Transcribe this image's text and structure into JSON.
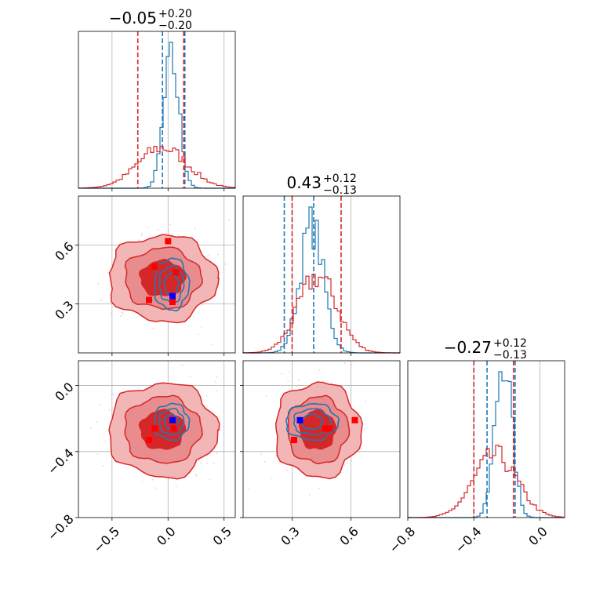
{
  "colors": {
    "blue": "#1f77b4",
    "red": "#d62728",
    "red_fill_light": "#f2b6b7",
    "red_fill_mid": "#e88c8d",
    "red_fill_dark": "#d62728",
    "grid": "#b0b0b0"
  },
  "chart_data": {
    "type": "corner",
    "params": 3,
    "titles": [
      {
        "main": "−0.05",
        "plus": "+0.20",
        "minus": "−0.20"
      },
      {
        "main": "0.43",
        "plus": "+0.12",
        "minus": "−0.13"
      },
      {
        "main": "−0.27",
        "plus": "+0.12",
        "minus": "−0.13"
      }
    ],
    "ranges": [
      [
        -0.8,
        0.6
      ],
      [
        0.05,
        0.85
      ],
      [
        -0.8,
        0.15
      ]
    ],
    "ticks": [
      {
        "values": [
          -0.5,
          0.0,
          0.5
        ],
        "labels": [
          "−0.5",
          "0.0",
          "0.5"
        ]
      },
      {
        "values": [
          0.3,
          0.6
        ],
        "labels": [
          "0.3",
          "0.6"
        ]
      },
      {
        "values": [
          -0.8,
          -0.4,
          0.0
        ],
        "labels": [
          "−0.8",
          "−0.4",
          "0.0"
        ]
      }
    ],
    "row_ticks": [
      {
        "values": [
          0.3,
          0.6
        ],
        "labels": [
          "0.3",
          "0.6"
        ]
      },
      {
        "values": [
          -0.8,
          -0.4,
          0.0
        ],
        "labels": [
          "−0.8",
          "−0.4",
          "0.0"
        ]
      }
    ],
    "grid": true,
    "series": [
      {
        "color": "blue",
        "means": [
          0.03,
          0.4,
          -0.22
        ],
        "sigmas": [
          0.07,
          0.06,
          0.05
        ],
        "quantiles": [
          [
            -0.05,
            0.15
          ],
          [
            0.26,
            0.41
          ],
          [
            -0.32,
            -0.15
          ]
        ],
        "contour_radii": [
          [
            0.09,
            0.08
          ],
          [
            0.15,
            0.12
          ],
          [
            0.18,
            0.14
          ]
        ]
      },
      {
        "color": "red",
        "means": [
          -0.05,
          0.43,
          -0.27
        ],
        "sigmas": [
          0.22,
          0.1,
          0.13
        ],
        "quantiles": [
          [
            -0.27,
            0.14
          ],
          [
            0.3,
            0.55
          ],
          [
            -0.4,
            -0.16
          ]
        ],
        "contour_radii": [
          [
            0.18,
            0.12
          ],
          [
            0.3,
            0.2
          ],
          [
            0.4,
            0.27
          ]
        ]
      }
    ],
    "markers_red": {
      "p0_p1": [
        [
          0.0,
          0.62
        ],
        [
          -0.12,
          0.49
        ],
        [
          0.07,
          0.46
        ],
        [
          -0.17,
          0.32
        ],
        [
          0.04,
          0.31
        ]
      ],
      "p0_p2": [
        [
          -0.12,
          -0.26
        ],
        [
          0.05,
          -0.26
        ],
        [
          -0.17,
          -0.33
        ]
      ],
      "p1_p2": [
        [
          0.62,
          -0.21
        ],
        [
          0.47,
          -0.26
        ],
        [
          0.49,
          -0.26
        ],
        [
          0.31,
          -0.33
        ]
      ]
    },
    "markers_blue": {
      "p0_p1": [
        [
          0.04,
          0.34
        ]
      ],
      "p0_p2": [
        [
          0.04,
          -0.21
        ]
      ],
      "p1_p2": [
        [
          0.34,
          -0.21
        ]
      ]
    }
  }
}
